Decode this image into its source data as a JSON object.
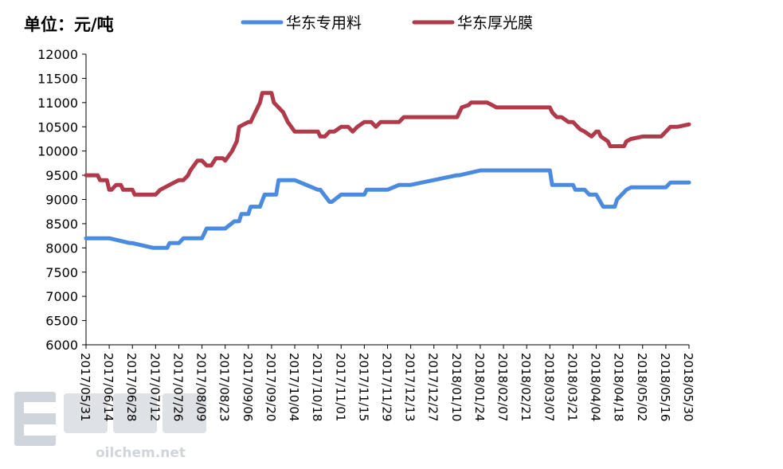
{
  "unit_label": "单位：元/吨",
  "watermark": {
    "site": "oilchem.net"
  },
  "colors": {
    "blue": "#4A8BE0",
    "red": "#B03A4A",
    "axis": "#000000"
  },
  "chart_data": {
    "type": "line",
    "title": "",
    "xlabel": "",
    "ylabel": "",
    "ylim": [
      6000,
      12000
    ],
    "yticks": [
      6000,
      6500,
      7000,
      7500,
      8000,
      8500,
      9000,
      9500,
      10000,
      10500,
      11000,
      11500,
      12000
    ],
    "categories": [
      "2017/05/31",
      "2017/06/14",
      "2017/06/28",
      "2017/07/12",
      "2017/07/26",
      "2017/08/09",
      "2017/08/23",
      "2017/09/06",
      "2017/09/20",
      "2017/10/04",
      "2017/10/18",
      "2017/11/01",
      "2017/11/15",
      "2017/11/29",
      "2017/12/13",
      "2017/12/27",
      "2018/01/10",
      "2018/01/24",
      "2018/02/07",
      "2018/02/21",
      "2018/03/07",
      "2018/03/21",
      "2018/04/04",
      "2018/04/18",
      "2018/05/02",
      "2018/05/16",
      "2018/05/30"
    ],
    "legend_position": "top",
    "grid": false,
    "series": [
      {
        "name": "华东专用料",
        "color": "#4A8BE0",
        "x": [
          0,
          0.9,
          1.0,
          1.9,
          2.0,
          2.9,
          3.0,
          3.5,
          3.6,
          4.0,
          4.2,
          5.0,
          5.2,
          6.0,
          6.4,
          6.6,
          6.7,
          7.0,
          7.1,
          7.5,
          7.7,
          8.2,
          8.3,
          8.5,
          8.6,
          9.0,
          10.0,
          10.1,
          10.5,
          10.6,
          11.0,
          12.0,
          12.1,
          13.0,
          13.5,
          13.7,
          14.0,
          16.0,
          16.1,
          17.0,
          18.0,
          19.0,
          20.0,
          20.1,
          20.5,
          21.0,
          21.1,
          21.5,
          21.7,
          22.0,
          22.3,
          22.8,
          22.9,
          23.3,
          23.5,
          24.0,
          25.0,
          25.2,
          26.0
        ],
        "values": [
          8200,
          8200,
          8200,
          8100,
          8100,
          8000,
          8000,
          8000,
          8100,
          8100,
          8200,
          8200,
          8400,
          8400,
          8550,
          8550,
          8700,
          8700,
          8850,
          8850,
          9100,
          9100,
          9400,
          9400,
          9400,
          9400,
          9200,
          9200,
          8950,
          8950,
          9100,
          9100,
          9200,
          9200,
          9300,
          9300,
          9300,
          9500,
          9500,
          9600,
          9600,
          9600,
          9600,
          9300,
          9300,
          9300,
          9200,
          9200,
          9100,
          9100,
          8850,
          8850,
          9000,
          9200,
          9250,
          9250,
          9250,
          9350,
          9350
        ]
      },
      {
        "name": "华东厚光膜",
        "color": "#B03A4A",
        "x": [
          0,
          0.5,
          0.6,
          0.9,
          1.0,
          1.1,
          1.3,
          1.5,
          1.6,
          2.0,
          2.1,
          2.5,
          3.0,
          3.2,
          3.4,
          3.6,
          4.0,
          4.2,
          4.4,
          4.5,
          4.8,
          5.0,
          5.2,
          5.4,
          5.6,
          5.9,
          6.0,
          6.3,
          6.4,
          6.5,
          6.6,
          7.0,
          7.1,
          7.2,
          7.4,
          7.5,
          7.6,
          7.7,
          8.0,
          8.1,
          8.5,
          8.7,
          9.0,
          9.2,
          9.5,
          10.0,
          10.1,
          10.3,
          10.5,
          10.7,
          11.0,
          11.3,
          11.5,
          11.7,
          12.0,
          12.3,
          12.5,
          12.7,
          13.0,
          13.5,
          13.7,
          14.0,
          15.0,
          15.5,
          16.0,
          16.1,
          16.2,
          16.5,
          16.6,
          17.0,
          17.3,
          17.7,
          18.0,
          18.5,
          19.0,
          19.5,
          20.0,
          20.1,
          20.3,
          20.5,
          20.8,
          21.0,
          21.2,
          21.3,
          21.5,
          21.8,
          22.0,
          22.1,
          22.2,
          22.5,
          22.6,
          23.0,
          23.2,
          23.3,
          23.5,
          24.0,
          24.5,
          24.8,
          25.0,
          25.2,
          25.5,
          26.0
        ],
        "values": [
          9500,
          9500,
          9400,
          9400,
          9200,
          9200,
          9300,
          9300,
          9200,
          9200,
          9100,
          9100,
          9100,
          9200,
          9250,
          9300,
          9400,
          9400,
          9500,
          9600,
          9800,
          9800,
          9700,
          9700,
          9850,
          9850,
          9800,
          10000,
          10100,
          10200,
          10500,
          10600,
          10600,
          10700,
          10900,
          11000,
          11200,
          11200,
          11200,
          11000,
          10800,
          10600,
          10400,
          10400,
          10400,
          10400,
          10300,
          10300,
          10400,
          10400,
          10500,
          10500,
          10400,
          10500,
          10600,
          10600,
          10500,
          10600,
          10600,
          10600,
          10700,
          10700,
          10700,
          10700,
          10700,
          10800,
          10900,
          10950,
          11000,
          11000,
          11000,
          10900,
          10900,
          10900,
          10900,
          10900,
          10900,
          10800,
          10700,
          10700,
          10600,
          10600,
          10500,
          10450,
          10400,
          10300,
          10400,
          10400,
          10300,
          10200,
          10100,
          10100,
          10100,
          10200,
          10250,
          10300,
          10300,
          10300,
          10400,
          10500,
          10500,
          10550
        ]
      }
    ]
  }
}
